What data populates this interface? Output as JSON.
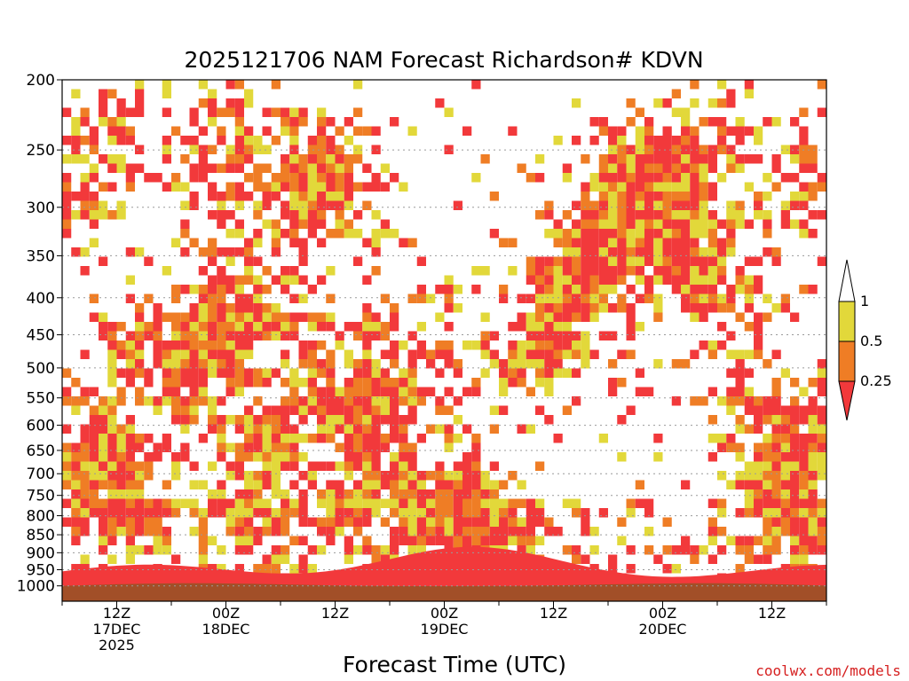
{
  "chart_data": {
    "type": "heatmap",
    "title": "2025121706 NAM Forecast Richardson# KDVN",
    "xlabel": "Forecast Time (UTC)",
    "ylabel": "",
    "y_axis": {
      "scale": "log",
      "inverted": true,
      "range": [
        1050,
        200
      ],
      "ticks": [
        200,
        250,
        300,
        350,
        400,
        450,
        500,
        550,
        600,
        650,
        700,
        750,
        800,
        850,
        900,
        950,
        1000
      ],
      "gridlines": "dotted at every tick"
    },
    "x_axis": {
      "start": "2025-12-17 06Z",
      "end": "2025-12-20 18Z",
      "step_hours": 1,
      "tick_labels": [
        {
          "hour": "12Z",
          "day": "17DEC",
          "year": "2025"
        },
        {
          "hour": "00Z",
          "day": "18DEC",
          "year": ""
        },
        {
          "hour": "12Z",
          "day": "",
          "year": ""
        },
        {
          "hour": "00Z",
          "day": "19DEC",
          "year": ""
        },
        {
          "hour": "12Z",
          "day": "",
          "year": ""
        },
        {
          "hour": "00Z",
          "day": "20DEC",
          "year": ""
        },
        {
          "hour": "12Z",
          "day": "",
          "year": ""
        }
      ]
    },
    "colorbar": {
      "labels": [
        "1",
        "0.5",
        "0.25"
      ],
      "bins": [
        {
          "range": "above 1",
          "color": "#ffffff"
        },
        {
          "range": "0.5 to 1",
          "color": "#e2d83a"
        },
        {
          "range": "0.25 to 0.5",
          "color": "#ef7d25"
        },
        {
          "range": "below 0.25",
          "color": "#f2393b"
        }
      ],
      "placement": "right"
    },
    "ground_color": "#a24f28",
    "grid": true,
    "approximate_cells": [
      {
        "t_hours": 1,
        "p": 300,
        "class": 2
      },
      {
        "t_hours": 1,
        "p": 690,
        "class": 3
      },
      {
        "t_hours": 6,
        "p": 230,
        "class": 2
      },
      {
        "t_hours": 6,
        "p": 650,
        "class": 3
      },
      {
        "t_hours": 8,
        "p": 460,
        "class": 1
      },
      {
        "t_hours": 8,
        "p": 760,
        "class": 2
      },
      {
        "t_hours": 14,
        "p": 530,
        "class": 1
      },
      {
        "t_hours": 16,
        "p": 440,
        "class": 2
      },
      {
        "t_hours": 17,
        "p": 300,
        "class": 3
      },
      {
        "t_hours": 18,
        "p": 230,
        "class": 3
      },
      {
        "t_hours": 19,
        "p": 420,
        "class": 3
      },
      {
        "t_hours": 21,
        "p": 760,
        "class": 3
      },
      {
        "t_hours": 22,
        "p": 640,
        "class": 3
      },
      {
        "t_hours": 25,
        "p": 300,
        "class": 3
      },
      {
        "t_hours": 26,
        "p": 440,
        "class": 2
      },
      {
        "t_hours": 28,
        "p": 260,
        "class": 3
      },
      {
        "t_hours": 29,
        "p": 560,
        "class": 2
      },
      {
        "t_hours": 31,
        "p": 280,
        "class": 3
      },
      {
        "t_hours": 32,
        "p": 750,
        "class": 3
      },
      {
        "t_hours": 34,
        "p": 520,
        "class": 3
      },
      {
        "t_hours": 36,
        "p": 620,
        "class": 3
      },
      {
        "t_hours": 40,
        "p": 800,
        "class": 3
      },
      {
        "t_hours": 42,
        "p": 460,
        "class": 3
      },
      {
        "t_hours": 44,
        "p": 750,
        "class": 3
      },
      {
        "t_hours": 48,
        "p": 840,
        "class": 3
      },
      {
        "t_hours": 52,
        "p": 490,
        "class": 1
      },
      {
        "t_hours": 55,
        "p": 420,
        "class": 2
      },
      {
        "t_hours": 57,
        "p": 380,
        "class": 2
      },
      {
        "t_hours": 60,
        "p": 330,
        "class": 3
      },
      {
        "t_hours": 62,
        "p": 270,
        "class": 3
      },
      {
        "t_hours": 64,
        "p": 300,
        "class": 3
      },
      {
        "t_hours": 66,
        "p": 310,
        "class": 3
      },
      {
        "t_hours": 68,
        "p": 270,
        "class": 3
      },
      {
        "t_hours": 70,
        "p": 400,
        "class": 3
      },
      {
        "t_hours": 72,
        "p": 240,
        "class": 2
      },
      {
        "t_hours": 74,
        "p": 370,
        "class": 3
      },
      {
        "t_hours": 76,
        "p": 560,
        "class": 3
      },
      {
        "t_hours": 78,
        "p": 720,
        "class": 3
      },
      {
        "t_hours": 80,
        "p": 710,
        "class": 3
      },
      {
        "t_hours": 82,
        "p": 280,
        "class": 3
      },
      {
        "t_hours": 84,
        "p": 880,
        "class": 3
      },
      {
        "t_hours": 86,
        "p": 600,
        "class": 3
      }
    ]
  },
  "credit": "coolwx.com/models"
}
